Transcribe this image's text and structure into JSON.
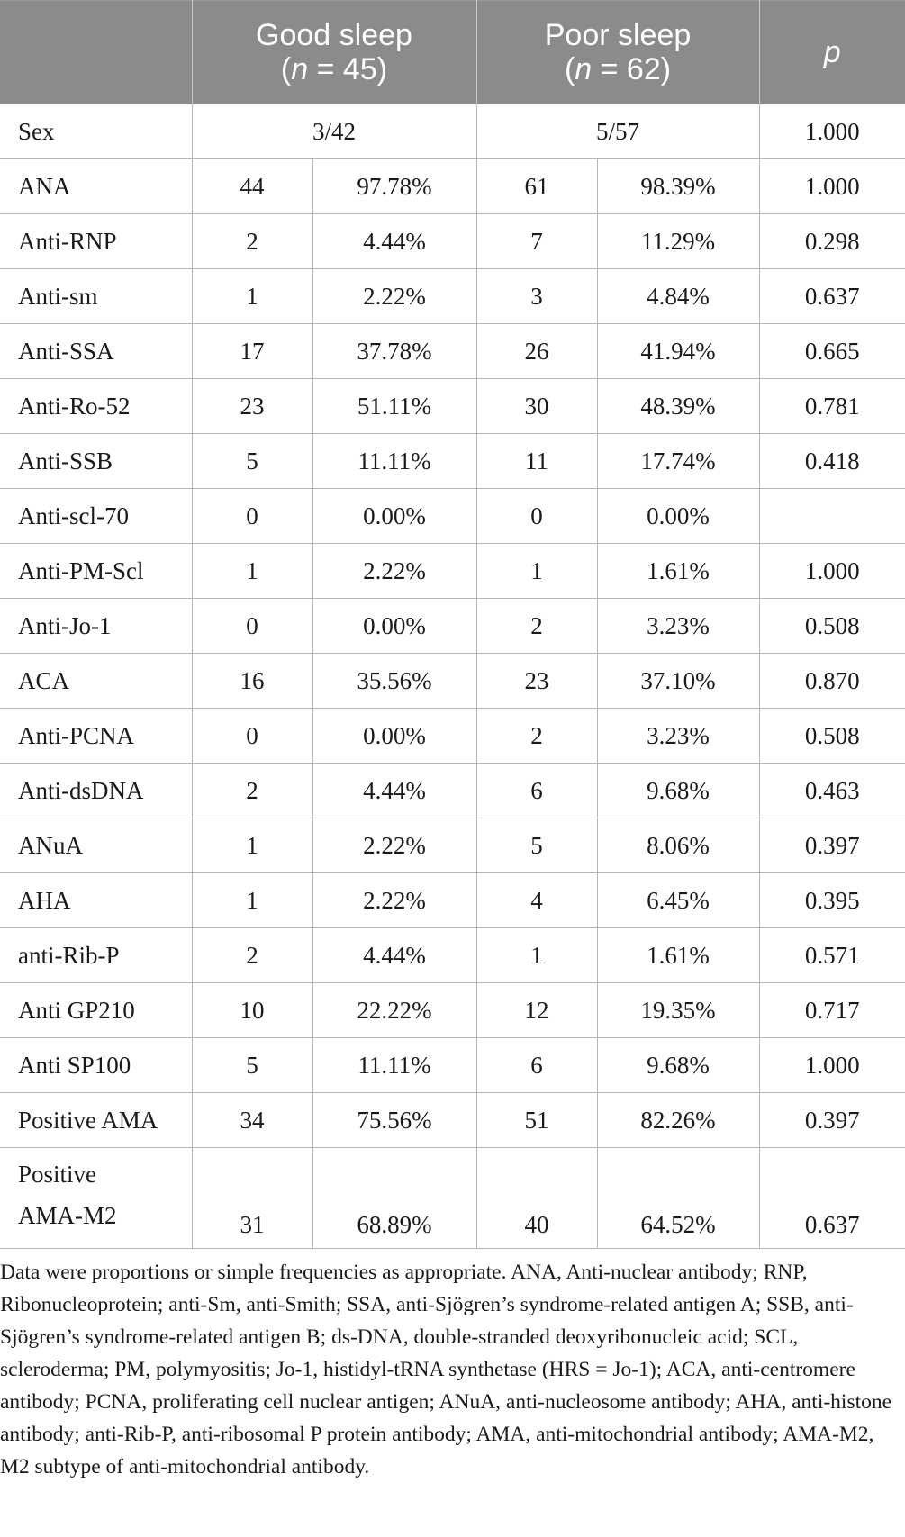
{
  "header": {
    "col1": "",
    "good_label": "Good sleep",
    "good_n": "(n = 45)",
    "poor_label": "Poor sleep",
    "poor_n": "(n = 62)",
    "p_label": "p"
  },
  "sex_row": {
    "label": "Sex",
    "good": "3/42",
    "poor": "5/57",
    "p": "1.000"
  },
  "rows": [
    {
      "label": "ANA",
      "good_n": "44",
      "good_pct": "97.78%",
      "poor_n": "61",
      "poor_pct": "98.39%",
      "p": "1.000"
    },
    {
      "label": "Anti-RNP",
      "good_n": "2",
      "good_pct": "4.44%",
      "poor_n": "7",
      "poor_pct": "11.29%",
      "p": "0.298"
    },
    {
      "label": "Anti-sm",
      "good_n": "1",
      "good_pct": "2.22%",
      "poor_n": "3",
      "poor_pct": "4.84%",
      "p": "0.637"
    },
    {
      "label": "Anti-SSA",
      "good_n": "17",
      "good_pct": "37.78%",
      "poor_n": "26",
      "poor_pct": "41.94%",
      "p": "0.665"
    },
    {
      "label": "Anti-Ro-52",
      "good_n": "23",
      "good_pct": "51.11%",
      "poor_n": "30",
      "poor_pct": "48.39%",
      "p": "0.781"
    },
    {
      "label": "Anti-SSB",
      "good_n": "5",
      "good_pct": "11.11%",
      "poor_n": "11",
      "poor_pct": "17.74%",
      "p": "0.418"
    },
    {
      "label": "Anti-scl-70",
      "good_n": "0",
      "good_pct": "0.00%",
      "poor_n": "0",
      "poor_pct": "0.00%",
      "p": ""
    },
    {
      "label": "Anti-PM-Scl",
      "good_n": "1",
      "good_pct": "2.22%",
      "poor_n": "1",
      "poor_pct": "1.61%",
      "p": "1.000"
    },
    {
      "label": "Anti-Jo-1",
      "good_n": "0",
      "good_pct": "0.00%",
      "poor_n": "2",
      "poor_pct": "3.23%",
      "p": "0.508"
    },
    {
      "label": "ACA",
      "good_n": "16",
      "good_pct": "35.56%",
      "poor_n": "23",
      "poor_pct": "37.10%",
      "p": "0.870"
    },
    {
      "label": "Anti-PCNA",
      "good_n": "0",
      "good_pct": "0.00%",
      "poor_n": "2",
      "poor_pct": "3.23%",
      "p": "0.508"
    },
    {
      "label": "Anti-dsDNA",
      "good_n": "2",
      "good_pct": "4.44%",
      "poor_n": "6",
      "poor_pct": "9.68%",
      "p": "0.463"
    },
    {
      "label": "ANuA",
      "good_n": "1",
      "good_pct": "2.22%",
      "poor_n": "5",
      "poor_pct": "8.06%",
      "p": "0.397"
    },
    {
      "label": "AHA",
      "good_n": "1",
      "good_pct": "2.22%",
      "poor_n": "4",
      "poor_pct": "6.45%",
      "p": "0.395"
    },
    {
      "label": "anti-Rib-P",
      "good_n": "2",
      "good_pct": "4.44%",
      "poor_n": "1",
      "poor_pct": "1.61%",
      "p": "0.571"
    },
    {
      "label": "Anti GP210",
      "good_n": "10",
      "good_pct": "22.22%",
      "poor_n": "12",
      "poor_pct": "19.35%",
      "p": "0.717"
    },
    {
      "label": "Anti SP100",
      "good_n": "5",
      "good_pct": "11.11%",
      "poor_n": "6",
      "poor_pct": "9.68%",
      "p": "1.000"
    },
    {
      "label": "Positive AMA",
      "good_n": "34",
      "good_pct": "75.56%",
      "poor_n": "51",
      "poor_pct": "82.26%",
      "p": "0.397"
    }
  ],
  "last_row": {
    "label_line1": "Positive",
    "label_line2": "AMA-M2",
    "good_n": "31",
    "good_pct": "68.89%",
    "poor_n": "40",
    "poor_pct": "64.52%",
    "p": "0.637"
  },
  "footnote": "Data were proportions or simple frequencies as appropriate. ANA, Anti-nuclear antibody; RNP, Ribonucleoprotein; anti-Sm, anti-Smith; SSA, anti-Sjögren’s syndrome-related antigen A; SSB, anti-Sjögren’s syndrome-related antigen B; ds-DNA, double-stranded deoxyribonucleic acid; SCL, scleroderma; PM, polymyositis; Jo-1, histidyl-tRNA synthetase (HRS = Jo-1); ACA, anti-centromere antibody; PCNA, proliferating cell nuclear antigen; ANuA, anti-nucleosome antibody; AHA, anti-histone antibody; anti-Rib-P, anti-ribosomal P protein antibody; AMA, anti-mitochondrial antibody; AMA-M2, M2 subtype of anti-mitochondrial antibody."
}
